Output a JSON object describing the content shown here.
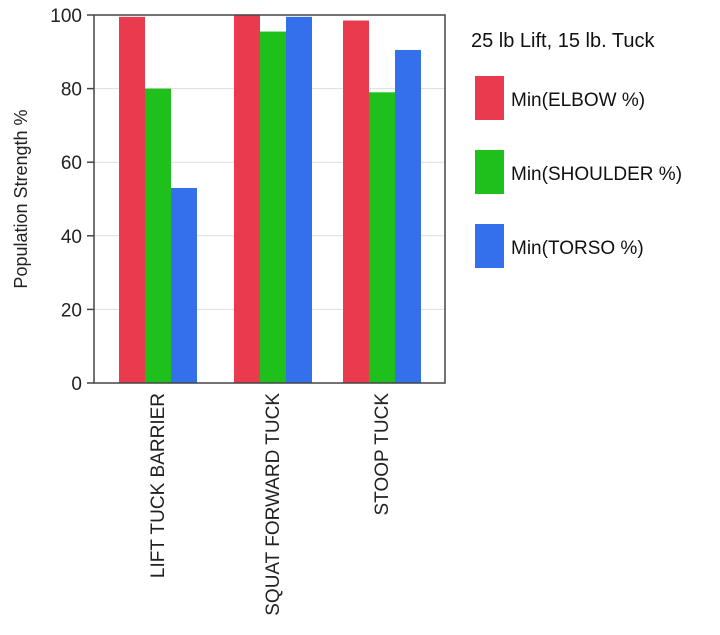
{
  "chart_data": {
    "type": "bar",
    "title": "",
    "xlabel": "",
    "ylabel": "Population Strength %",
    "ylim": [
      0,
      100
    ],
    "yticks": [
      "0",
      "20",
      "40",
      "60",
      "80",
      "100"
    ],
    "categories": [
      "LIFT TUCK BARRIER",
      "SQUAT FORWARD TUCK",
      "STOOP TUCK"
    ],
    "legend": {
      "title": "25 lb Lift, 15 lb. Tuck",
      "position": "right"
    },
    "grid": "horizontal",
    "series": [
      {
        "name": "Min(ELBOW %)",
        "color": "#ea3a4e",
        "values": [
          99.5,
          100,
          98.5
        ]
      },
      {
        "name": "Min(SHOULDER %)",
        "color": "#1fbf1c",
        "values": [
          80,
          95.5,
          79
        ]
      },
      {
        "name": "Min(TORSO %)",
        "color": "#3570ec",
        "values": [
          53,
          99.5,
          90.5
        ]
      }
    ]
  }
}
